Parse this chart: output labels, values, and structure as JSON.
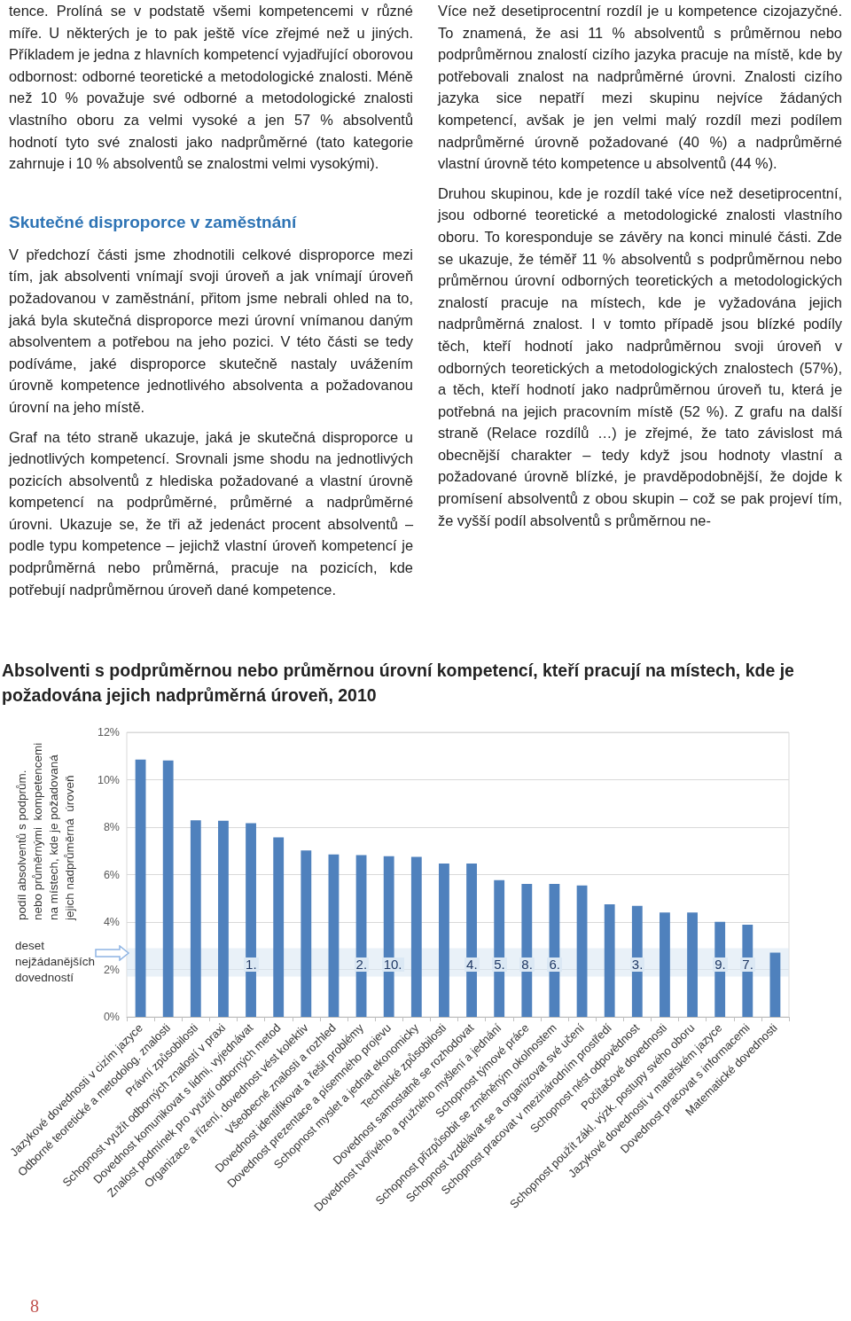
{
  "chart_data": {
    "type": "bar",
    "title": "Absolventi s podprůměrnou nebo průměrnou úrovní kompetencí, kteří pracují na místech, kde je požadována jejich nadprůměrná úroveň, 2010",
    "ylabel": "podíl absolventů s podprům.\nnebo průměrnými  kompetencemi\nna místech, kde je požadovaná\njejich nadprůměrná  úroveň",
    "categories": [
      "Jazykové dovednosti v cizím jazyce",
      "Odborné teoretické a metodolog. znalosti",
      "Právní způsobilosti",
      "Schopnost využít odborných znalostí v praxi",
      "Dovednost komunikovat s lidmi, vyjednávat",
      "Znalost podmínek pro využití odborných metod",
      "Organizace a řízení, dovednost vést kolektiv",
      "Všeobecné znalosti a rozhled",
      "Dovednost identifikovat a řešit problémy",
      "Dovednost prezentace a písemného projevu",
      "Schopnost myslet a jednat ekonomicky",
      "Technické způsobilosti",
      "Dovednost samostatně se rozhodovat",
      "Dovednost tvořivého a pružného myšlení a jednání",
      "Schopnost týmové práce",
      "Schopnost přizpůsobit se změněným okolnostem",
      "Schopnost vzdělávat se a organizovat své učení",
      "Schopnost pracovat v mezinárodním prostředí",
      "Schopnost nést odpovědnost",
      "Počítačové dovednosti",
      "Schopnost použít zákl. výzk. postupy svého oboru",
      "Jazykové dovednosti v mateřském jazyce",
      "Dovednost pracovat s informacemi",
      "Matematické dovednosti"
    ],
    "values": [
      10.85,
      10.81,
      8.29,
      8.27,
      8.17,
      7.57,
      7.02,
      6.85,
      6.82,
      6.78,
      6.75,
      6.47,
      6.47,
      5.77,
      5.61,
      5.61,
      5.54,
      4.75,
      4.68,
      4.4,
      4.4,
      4.01,
      3.89,
      2.71
    ],
    "color": "#4f81bd",
    "ylim": [
      0,
      12
    ],
    "yticks": [
      {
        "value": 0,
        "label": "0%"
      },
      {
        "value": 2,
        "label": "2%"
      },
      {
        "value": 4,
        "label": "4%"
      },
      {
        "value": 6,
        "label": "6%"
      },
      {
        "value": 8,
        "label": "8%"
      },
      {
        "value": 10,
        "label": "10%"
      },
      {
        "value": 12,
        "label": "12%"
      }
    ],
    "grid": "y",
    "bands": [
      {
        "axis": "y",
        "from": 1.7,
        "to": 2.9,
        "label": "deset\nnejžádanějších\ndovedností",
        "color": "#dbe8f4"
      }
    ],
    "annotations": [
      "tence. Prolíná se v podstatě všemi kompetencemi v různé míře. U některých je to pak ještě více zřejmé než u jiných. Příkladem je jedna z hlavních kompetencí vyjadřující oborovou odbornost: odborné teoretické a metodologické znalosti. Méně než 10 % považuje své odborné a metodologické znalosti vlastního oboru za velmi vysoké a jen 57 % absolventů hodnotí tyto své znalosti jako nadprůměrné (tato kategorie zahrnuje i 10 % absolventů se znalostmi velmi vysokými).",
      "Skutečné disproporce v zaměstnání",
      "V předchozí části jsme zhodnotili celkové disproporce mezi tím, jak absolventi vnímají svoji úroveň a jak vnímají úroveň požadovanou v zaměstnání, přitom jsme nebrali ohled na to, jaká byla skutečná disproporce mezi úrovní vnímanou daným absolventem a potřebou na jeho pozici. V této části se tedy podíváme, jaké disproporce skutečně nastaly uvážením úrovně kompetence jednotlivého absolventa a požadovanou úrovní na jeho místě.",
      "Graf na této straně ukazuje, jaká je skutečná disproporce u jednotlivých kompetencí. Srovnali jsme shodu na jednotlivých pozicích absolventů z hlediska požadované a vlastní úrovně kompetencí na podprůměrné, průměrné a nadprůměrné úrovni. Ukazuje se, že tři až jedenáct procent absolventů – podle typu kompetence – jejichž vlastní úroveň kompetencí je podprůměrná nebo průměrná, pracuje na pozicích, kde potřebují nadprůměrnou úroveň dané kompetence.",
      "Více než desetiprocentní rozdíl je u kompetence cizojazyčné. To znamená, že asi 11 % absolventů s průměrnou nebo podprůměrnou znalostí cizího jazyka pracuje na místě, kde by potřebovali znalost na nadprůměrné úrovni. Znalosti cizího jazyka sice nepatří mezi skupinu nejvíce žádaných kompetencí, avšak je jen velmi malý rozdíl mezi podílem nadprůměrné úrovně požadované (40 %) a nadprůměrné vlastní úrovně této kompetence u absolventů (44 %).",
      "Druhou skupinou, kde je rozdíl také více než desetiprocentní, jsou odborné teoretické a metodologické znalosti vlastního oboru. To koresponduje se závěry na konci minulé části. Zde se ukazuje, že téměř 11 % absolventů s podprůměrnou nebo průměrnou úrovní odborných teoretických a metodologických znalostí pracuje na místech, kde je vyžadována jejich nadprůměrná znalost. I v tomto případě jsou blízké podíly těch, kteří hodnotí jako nadprůměrnou svoji úroveň v odborných teoretických a metodologických znalostech (57%), a těch, kteří hodnotí jako nadprůměrnou úroveň tu, která je potřebná na jejich pracovním místě (52 %). Z grafu na další straně (Relace rozdílů …) je zřejmé, že tato závislost má obecnější charakter – tedy když jsou hodnoty vlastní a požadované úrovně blízké, je pravděpodobnější, že dojde k promísení absolventů z obou skupin – což se pak projeví tím, že vyšší podíl absolventů s průměrnou ne-",
      "8",
      {
        "text": "1.",
        "x": "Dovednost komunikovat s lidmi, vyjednávat",
        "y": 1.7
      },
      {
        "text": "2.",
        "x": "Dovednost identifikovat a řešit problémy",
        "y": 1.7
      },
      {
        "text": "10.",
        "x": "Dovednost prezentace a písemného projevu",
        "y": 1.7
      },
      {
        "text": "4.",
        "x": "Dovednost samostatně se rozhodovat",
        "y": 1.7
      },
      {
        "text": "5.",
        "x": "Dovednost tvořivého a pružného myšlení a jednání",
        "y": 1.7
      },
      {
        "text": "8.",
        "x": "Schopnost týmové práce",
        "y": 1.7
      },
      {
        "text": "6.",
        "x": "Schopnost přizpůsobit se změněným okolnostem",
        "y": 1.7
      },
      {
        "text": "3.",
        "x": "Schopnost nést odpovědnost",
        "y": 1.7
      },
      {
        "text": "9.",
        "x": "Jazykové dovednosti v mateřském jazyce",
        "y": 1.7
      },
      {
        "text": "7.",
        "x": "Dovednost pracovat s informacemi",
        "y": 1.7
      }
    ]
  }
}
